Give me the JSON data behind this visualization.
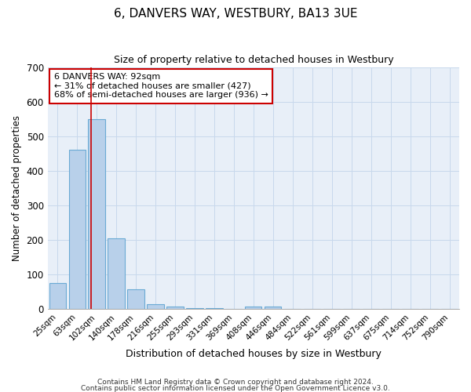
{
  "title": "6, DANVERS WAY, WESTBURY, BA13 3UE",
  "subtitle": "Size of property relative to detached houses in Westbury",
  "xlabel": "Distribution of detached houses by size in Westbury",
  "ylabel": "Number of detached properties",
  "footnote1": "Contains HM Land Registry data © Crown copyright and database right 2024.",
  "footnote2": "Contains public sector information licensed under the Open Government Licence v3.0.",
  "categories": [
    "25sqm",
    "63sqm",
    "102sqm",
    "140sqm",
    "178sqm",
    "216sqm",
    "255sqm",
    "293sqm",
    "331sqm",
    "369sqm",
    "408sqm",
    "446sqm",
    "484sqm",
    "522sqm",
    "561sqm",
    "599sqm",
    "637sqm",
    "675sqm",
    "714sqm",
    "752sqm",
    "790sqm"
  ],
  "values": [
    75,
    460,
    550,
    205,
    57,
    15,
    8,
    3,
    3,
    0,
    8,
    8,
    0,
    0,
    0,
    0,
    0,
    0,
    0,
    0,
    0
  ],
  "bar_color": "#b8d0ea",
  "bar_edge_color": "#6aaad4",
  "grid_color": "#c8d8ec",
  "background_color": "#e8eff8",
  "red_line_x": 1.72,
  "annotation_title": "6 DANVERS WAY: 92sqm",
  "annotation_line1": "← 31% of detached houses are smaller (427)",
  "annotation_line2": "68% of semi-detached houses are larger (936) →",
  "annotation_box_color": "#ffffff",
  "annotation_border_color": "#cc0000",
  "red_line_color": "#cc0000",
  "ylim": [
    0,
    700
  ],
  "yticks": [
    0,
    100,
    200,
    300,
    400,
    500,
    600,
    700
  ]
}
